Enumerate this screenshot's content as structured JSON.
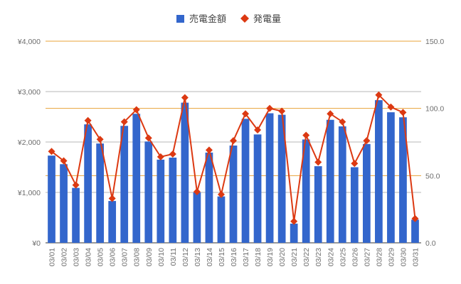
{
  "chart_data": {
    "type": "bar",
    "categories": [
      "03/01",
      "03/02",
      "03/03",
      "03/04",
      "03/05",
      "03/06",
      "03/07",
      "03/08",
      "03/09",
      "03/10",
      "03/11",
      "03/12",
      "03/13",
      "03/14",
      "03/15",
      "03/16",
      "03/17",
      "03/18",
      "03/19",
      "03/20",
      "03/21",
      "03/22",
      "03/23",
      "03/24",
      "03/25",
      "03/26",
      "03/27",
      "03/28",
      "03/29",
      "03/30",
      "03/31"
    ],
    "series": [
      {
        "name": "売電金額",
        "type": "bar",
        "axis": "left",
        "color": "#3366cc",
        "values": [
          1730,
          1560,
          1090,
          2350,
          1970,
          830,
          2320,
          2560,
          2010,
          1650,
          1690,
          2780,
          1000,
          1790,
          920,
          1930,
          2460,
          2150,
          2570,
          2540,
          380,
          2050,
          1520,
          2440,
          2310,
          1500,
          1960,
          2830,
          2590,
          2490,
          460
        ]
      },
      {
        "name": "発電量",
        "type": "line",
        "axis": "right",
        "color": "#dc3912",
        "values": [
          68,
          61,
          43,
          91,
          77,
          33,
          90,
          99,
          78,
          64,
          66,
          108,
          38,
          69,
          36,
          76,
          96,
          84,
          100,
          98,
          16,
          80,
          60,
          96,
          90,
          59,
          76,
          110,
          101,
          97,
          18
        ]
      }
    ],
    "left_axis": {
      "ticks": [
        "¥0",
        "¥1,000",
        "¥2,000",
        "¥3,000",
        "¥4,000"
      ],
      "ylim": [
        0,
        4000
      ]
    },
    "right_axis": {
      "ticks": [
        "0.0",
        "50.0",
        "100.0",
        "150.0"
      ],
      "ylim": [
        0,
        150
      ]
    },
    "legend": {
      "position": "top"
    },
    "gridlines": true
  }
}
